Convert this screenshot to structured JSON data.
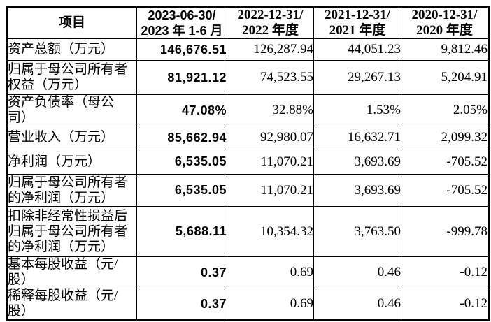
{
  "table": {
    "header": {
      "item": "项目",
      "periods": [
        "2023-06-30/\n2023 年 1-6 月",
        "2022-12-31/\n2022 年度",
        "2021-12-31/\n2021 年度",
        "2020-12-31/\n2020 年度"
      ]
    },
    "rows": [
      {
        "label": "资产总额（万元）",
        "values": [
          "146,676.51",
          "126,287.94",
          "44,051.23",
          "9,812.46"
        ]
      },
      {
        "label": "归属于母公司所有者\n权益（万元）",
        "values": [
          "81,921.12",
          "74,523.55",
          "29,267.13",
          "5,204.91"
        ]
      },
      {
        "label": "资产负债率（母公\n司）",
        "values": [
          "47.08%",
          "32.88%",
          "1.53%",
          "2.05%"
        ]
      },
      {
        "label": "营业收入（万元）",
        "values": [
          "85,662.94",
          "92,980.07",
          "16,632.71",
          "2,099.32"
        ]
      },
      {
        "label": "净利润（万元）",
        "values": [
          "6,535.05",
          "11,070.21",
          "3,693.69",
          "-705.52"
        ]
      },
      {
        "label": "归属于母公司所有者\n的净利润（万元）",
        "values": [
          "6,535.05",
          "11,070.21",
          "3,693.69",
          "-705.52"
        ]
      },
      {
        "label": "扣除非经常性损益后\n归属于母公司所有者\n的净利润（万元）",
        "values": [
          "5,688.11",
          "10,354.32",
          "3,763.50",
          "-999.78"
        ]
      },
      {
        "label": "基本每股收益（元/\n股）",
        "values": [
          "0.37",
          "0.69",
          "0.46",
          "-0.12"
        ]
      },
      {
        "label": "稀释每股收益（元/\n股）",
        "values": [
          "0.37",
          "0.69",
          "0.46",
          "-0.12"
        ]
      }
    ]
  }
}
